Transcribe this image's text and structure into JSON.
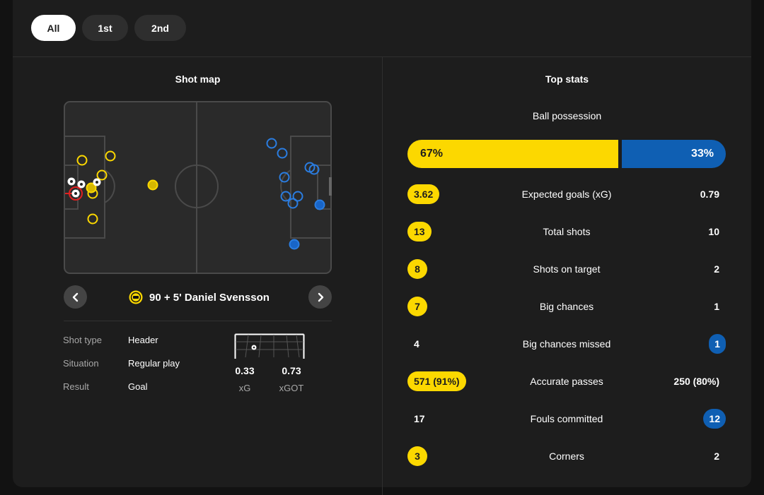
{
  "period_tabs": [
    "All",
    "1st",
    "2nd"
  ],
  "shot_map": {
    "title": "Shot map",
    "selected_shot": {
      "title": "90 + 5'  Daniel Svensson",
      "details": [
        {
          "label": "Shot type",
          "value": "Header"
        },
        {
          "label": "Situation",
          "value": "Regular play"
        },
        {
          "label": "Result",
          "value": "Goal"
        }
      ],
      "xg_value": "0.33",
      "xg_label": "xG",
      "xgot_value": "0.73",
      "xgot_label": "xGOT"
    },
    "colors": {
      "home": "#fcd800",
      "away": "#2a7de1",
      "selected": "#e02020"
    }
  },
  "top_stats": {
    "title": "Top stats",
    "possession": {
      "label": "Ball possession",
      "home": "67%",
      "away": "33%",
      "home_pct": 67,
      "away_pct": 33
    },
    "rows": [
      {
        "label": "Expected goals (xG)",
        "home": "3.62",
        "away": "0.79",
        "highlight": "home"
      },
      {
        "label": "Total shots",
        "home": "13",
        "away": "10",
        "highlight": "home"
      },
      {
        "label": "Shots on target",
        "home": "8",
        "away": "2",
        "highlight": "home"
      },
      {
        "label": "Big chances",
        "home": "7",
        "away": "1",
        "highlight": "home"
      },
      {
        "label": "Big chances missed",
        "home": "4",
        "away": "1",
        "highlight": "away"
      },
      {
        "label": "Accurate passes",
        "home": "571 (91%)",
        "away": "250 (80%)",
        "highlight": "home"
      },
      {
        "label": "Fouls committed",
        "home": "17",
        "away": "12",
        "highlight": "away"
      },
      {
        "label": "Corners",
        "home": "3",
        "away": "2",
        "highlight": "home"
      }
    ]
  }
}
